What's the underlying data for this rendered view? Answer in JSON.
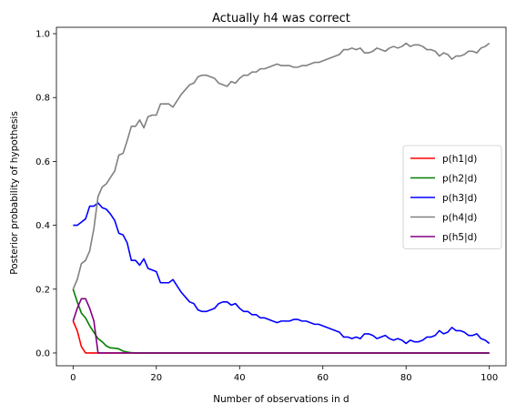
{
  "chart_data": {
    "type": "line",
    "title": "Actually h4 was correct",
    "xlabel": "Number of observations in d",
    "ylabel": "Posterior probability of hypothesis",
    "xlim": [
      -4,
      104
    ],
    "ylim": [
      -0.04,
      1.02
    ],
    "xticks": [
      0,
      20,
      40,
      60,
      80,
      100
    ],
    "yticks": [
      0.0,
      0.2,
      0.4,
      0.6,
      0.8,
      1.0
    ],
    "xtick_labels": [
      "0",
      "20",
      "40",
      "60",
      "80",
      "100"
    ],
    "ytick_labels": [
      "0.0",
      "0.2",
      "0.4",
      "0.6",
      "0.8",
      "1.0"
    ],
    "grid": false,
    "legend_position": "center-right",
    "series": [
      {
        "name": "p(h1|d)",
        "color": "#ff0000",
        "points": [
          [
            0,
            0.1
          ],
          [
            1,
            0.07
          ],
          [
            2,
            0.02
          ],
          [
            3,
            0.0
          ],
          [
            4,
            0.0
          ],
          [
            6,
            0.0
          ],
          [
            100,
            0.0
          ]
        ]
      },
      {
        "name": "p(h2|d)",
        "color": "#008000",
        "points": [
          [
            0,
            0.2
          ],
          [
            1,
            0.16
          ],
          [
            2,
            0.125
          ],
          [
            3,
            0.11
          ],
          [
            4,
            0.085
          ],
          [
            5,
            0.065
          ],
          [
            6,
            0.045
          ],
          [
            7,
            0.035
          ],
          [
            8,
            0.022
          ],
          [
            9,
            0.016
          ],
          [
            10,
            0.015
          ],
          [
            11,
            0.013
          ],
          [
            12,
            0.006
          ],
          [
            13,
            0.003
          ],
          [
            14,
            0.001
          ],
          [
            15,
            0.0
          ],
          [
            20,
            0.0
          ],
          [
            100,
            0.0
          ]
        ]
      },
      {
        "name": "p(h3|d)",
        "color": "#0000ff",
        "points": [
          [
            0,
            0.4
          ],
          [
            1,
            0.4
          ],
          [
            2,
            0.41
          ],
          [
            3,
            0.42
          ],
          [
            4,
            0.46
          ],
          [
            5,
            0.46
          ],
          [
            6,
            0.47
          ],
          [
            7,
            0.455
          ],
          [
            8,
            0.45
          ],
          [
            9,
            0.435
          ],
          [
            10,
            0.415
          ],
          [
            11,
            0.375
          ],
          [
            12,
            0.37
          ],
          [
            13,
            0.345
          ],
          [
            14,
            0.29
          ],
          [
            15,
            0.29
          ],
          [
            16,
            0.275
          ],
          [
            17,
            0.295
          ],
          [
            18,
            0.265
          ],
          [
            19,
            0.26
          ],
          [
            20,
            0.255
          ],
          [
            21,
            0.22
          ],
          [
            22,
            0.22
          ],
          [
            23,
            0.22
          ],
          [
            24,
            0.23
          ],
          [
            25,
            0.21
          ],
          [
            26,
            0.19
          ],
          [
            27,
            0.175
          ],
          [
            28,
            0.16
          ],
          [
            29,
            0.155
          ],
          [
            30,
            0.135
          ],
          [
            31,
            0.13
          ],
          [
            32,
            0.13
          ],
          [
            33,
            0.135
          ],
          [
            34,
            0.14
          ],
          [
            35,
            0.155
          ],
          [
            36,
            0.16
          ],
          [
            37,
            0.16
          ],
          [
            38,
            0.15
          ],
          [
            39,
            0.155
          ],
          [
            40,
            0.14
          ],
          [
            41,
            0.13
          ],
          [
            42,
            0.13
          ],
          [
            43,
            0.12
          ],
          [
            44,
            0.12
          ],
          [
            45,
            0.11
          ],
          [
            46,
            0.11
          ],
          [
            47,
            0.105
          ],
          [
            48,
            0.1
          ],
          [
            49,
            0.095
          ],
          [
            50,
            0.1
          ],
          [
            51,
            0.1
          ],
          [
            52,
            0.1
          ],
          [
            53,
            0.105
          ],
          [
            54,
            0.105
          ],
          [
            55,
            0.1
          ],
          [
            56,
            0.1
          ],
          [
            57,
            0.095
          ],
          [
            58,
            0.09
          ],
          [
            59,
            0.09
          ],
          [
            60,
            0.085
          ],
          [
            61,
            0.08
          ],
          [
            62,
            0.075
          ],
          [
            63,
            0.07
          ],
          [
            64,
            0.065
          ],
          [
            65,
            0.05
          ],
          [
            66,
            0.05
          ],
          [
            67,
            0.045
          ],
          [
            68,
            0.05
          ],
          [
            69,
            0.045
          ],
          [
            70,
            0.06
          ],
          [
            71,
            0.06
          ],
          [
            72,
            0.055
          ],
          [
            73,
            0.045
          ],
          [
            74,
            0.05
          ],
          [
            75,
            0.055
          ],
          [
            76,
            0.045
          ],
          [
            77,
            0.04
          ],
          [
            78,
            0.045
          ],
          [
            79,
            0.04
          ],
          [
            80,
            0.03
          ],
          [
            81,
            0.04
          ],
          [
            82,
            0.035
          ],
          [
            83,
            0.035
          ],
          [
            84,
            0.04
          ],
          [
            85,
            0.05
          ],
          [
            86,
            0.05
          ],
          [
            87,
            0.055
          ],
          [
            88,
            0.07
          ],
          [
            89,
            0.06
          ],
          [
            90,
            0.065
          ],
          [
            91,
            0.08
          ],
          [
            92,
            0.07
          ],
          [
            93,
            0.07
          ],
          [
            94,
            0.065
          ],
          [
            95,
            0.055
          ],
          [
            96,
            0.055
          ],
          [
            97,
            0.06
          ],
          [
            98,
            0.045
          ],
          [
            99,
            0.04
          ],
          [
            100,
            0.03
          ]
        ]
      },
      {
        "name": "p(h4|d)",
        "color": "#808080",
        "points": [
          [
            0,
            0.2
          ],
          [
            1,
            0.23
          ],
          [
            2,
            0.28
          ],
          [
            3,
            0.29
          ],
          [
            4,
            0.32
          ],
          [
            5,
            0.39
          ],
          [
            6,
            0.49
          ],
          [
            7,
            0.52
          ],
          [
            8,
            0.53
          ],
          [
            9,
            0.55
          ],
          [
            10,
            0.57
          ],
          [
            11,
            0.62
          ],
          [
            12,
            0.625
          ],
          [
            13,
            0.665
          ],
          [
            14,
            0.71
          ],
          [
            15,
            0.71
          ],
          [
            16,
            0.73
          ],
          [
            17,
            0.705
          ],
          [
            18,
            0.74
          ],
          [
            19,
            0.745
          ],
          [
            20,
            0.745
          ],
          [
            21,
            0.78
          ],
          [
            22,
            0.78
          ],
          [
            23,
            0.78
          ],
          [
            24,
            0.77
          ],
          [
            25,
            0.79
          ],
          [
            26,
            0.81
          ],
          [
            27,
            0.825
          ],
          [
            28,
            0.84
          ],
          [
            29,
            0.845
          ],
          [
            30,
            0.865
          ],
          [
            31,
            0.87
          ],
          [
            32,
            0.87
          ],
          [
            33,
            0.865
          ],
          [
            34,
            0.86
          ],
          [
            35,
            0.845
          ],
          [
            36,
            0.84
          ],
          [
            37,
            0.835
          ],
          [
            38,
            0.85
          ],
          [
            39,
            0.845
          ],
          [
            40,
            0.86
          ],
          [
            41,
            0.87
          ],
          [
            42,
            0.87
          ],
          [
            43,
            0.88
          ],
          [
            44,
            0.88
          ],
          [
            45,
            0.89
          ],
          [
            46,
            0.89
          ],
          [
            47,
            0.895
          ],
          [
            48,
            0.9
          ],
          [
            49,
            0.905
          ],
          [
            50,
            0.9
          ],
          [
            51,
            0.9
          ],
          [
            52,
            0.9
          ],
          [
            53,
            0.895
          ],
          [
            54,
            0.895
          ],
          [
            55,
            0.9
          ],
          [
            56,
            0.9
          ],
          [
            57,
            0.905
          ],
          [
            58,
            0.91
          ],
          [
            59,
            0.91
          ],
          [
            60,
            0.915
          ],
          [
            61,
            0.92
          ],
          [
            62,
            0.925
          ],
          [
            63,
            0.93
          ],
          [
            64,
            0.935
          ],
          [
            65,
            0.95
          ],
          [
            66,
            0.95
          ],
          [
            67,
            0.955
          ],
          [
            68,
            0.95
          ],
          [
            69,
            0.955
          ],
          [
            70,
            0.94
          ],
          [
            71,
            0.94
          ],
          [
            72,
            0.945
          ],
          [
            73,
            0.955
          ],
          [
            74,
            0.95
          ],
          [
            75,
            0.945
          ],
          [
            76,
            0.955
          ],
          [
            77,
            0.96
          ],
          [
            78,
            0.955
          ],
          [
            79,
            0.96
          ],
          [
            80,
            0.97
          ],
          [
            81,
            0.96
          ],
          [
            82,
            0.965
          ],
          [
            83,
            0.965
          ],
          [
            84,
            0.96
          ],
          [
            85,
            0.95
          ],
          [
            86,
            0.95
          ],
          [
            87,
            0.945
          ],
          [
            88,
            0.93
          ],
          [
            89,
            0.94
          ],
          [
            90,
            0.935
          ],
          [
            91,
            0.92
          ],
          [
            92,
            0.93
          ],
          [
            93,
            0.93
          ],
          [
            94,
            0.935
          ],
          [
            95,
            0.945
          ],
          [
            96,
            0.945
          ],
          [
            97,
            0.94
          ],
          [
            98,
            0.955
          ],
          [
            99,
            0.96
          ],
          [
            100,
            0.97
          ]
        ]
      },
      {
        "name": "p(h5|d)",
        "color": "#800080",
        "points": [
          [
            0,
            0.1
          ],
          [
            1,
            0.14
          ],
          [
            2,
            0.17
          ],
          [
            3,
            0.17
          ],
          [
            4,
            0.14
          ],
          [
            5,
            0.1
          ],
          [
            6,
            0.0
          ],
          [
            7,
            0.0
          ],
          [
            100,
            0.0
          ]
        ]
      }
    ]
  }
}
